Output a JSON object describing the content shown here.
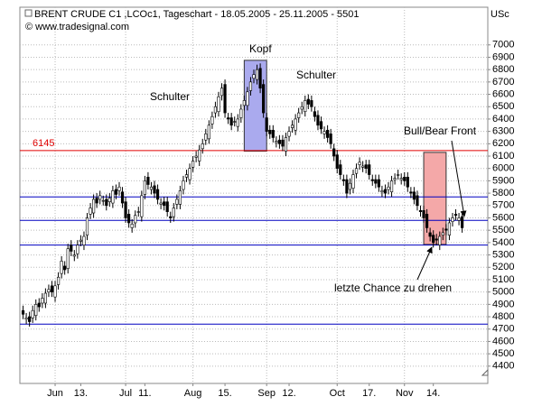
{
  "chart_data": {
    "type": "candlestick",
    "title": "BRENT CRUDE  C1 ,LCOc1, Tageschart - 18.05.2005 - 25.11.2005 - 5501",
    "subtitle": "© www.tradesignal.com",
    "y_unit": "USc",
    "xlim": [
      -1,
      145
    ],
    "ylim": [
      4260,
      7305
    ],
    "yticks": [
      4400,
      4500,
      4600,
      4700,
      4800,
      4900,
      5000,
      5100,
      5200,
      5300,
      5400,
      5500,
      5600,
      5700,
      5800,
      5900,
      6000,
      6100,
      6200,
      6300,
      6400,
      6500,
      6600,
      6700,
      6800,
      6900,
      7000
    ],
    "xticks": [
      {
        "value": 10,
        "label": "Jun"
      },
      {
        "value": 18,
        "label": "13."
      },
      {
        "value": 32,
        "label": "Jul"
      },
      {
        "value": 38,
        "label": "11."
      },
      {
        "value": 53,
        "label": "Aug"
      },
      {
        "value": 63,
        "label": "15."
      },
      {
        "value": 76,
        "label": "Sep"
      },
      {
        "value": 83,
        "label": "12."
      },
      {
        "value": 98,
        "label": "Oct"
      },
      {
        "value": 108,
        "label": "17."
      },
      {
        "value": 119,
        "label": "Nov"
      },
      {
        "value": 128,
        "label": "14."
      }
    ],
    "grid": true,
    "open": [
      4850,
      4780,
      4800,
      4790,
      4810,
      4910,
      4910,
      4910,
      5000,
      5050,
      4960,
      5060,
      5150,
      5210,
      5190,
      5380,
      5290,
      5310,
      5410,
      5380,
      5460,
      5630,
      5640,
      5760,
      5750,
      5740,
      5750,
      5730,
      5720,
      5830,
      5820,
      5810,
      5730,
      5630,
      5520,
      5560,
      5650,
      5610,
      5790,
      5930,
      5830,
      5860,
      5830,
      5710,
      5730,
      5730,
      5610,
      5610,
      5710,
      5710,
      5830,
      5930,
      5910,
      6010,
      6090,
      6060,
      6160,
      6230,
      6240,
      6360,
      6450,
      6460,
      6590,
      6680,
      6410,
      6410,
      6380,
      6340,
      6410,
      6510,
      6510,
      6630,
      6730,
      6720,
      6810,
      6680,
      6410,
      6310,
      6310,
      6210,
      6230,
      6230,
      6140,
      6260,
      6330,
      6310,
      6410,
      6480,
      6460,
      6560,
      6550,
      6460,
      6430,
      6380,
      6280,
      6310,
      6280,
      6160,
      6110,
      6030,
      5910,
      5910,
      5830,
      5840,
      5960,
      6030,
      6010,
      6030,
      6030,
      5910,
      5910,
      5910,
      5810,
      5830,
      5830,
      5810,
      5910,
      5950,
      5910,
      5930,
      5930,
      5810,
      5810,
      5780,
      5660,
      5660,
      5630,
      5480,
      5460,
      5430,
      5380,
      5460,
      5510,
      5460,
      5570,
      5630,
      5580,
      5610
    ],
    "high": [
      4890,
      4830,
      4840,
      4890,
      4940,
      4950,
      4990,
      5030,
      5060,
      5090,
      5090,
      5160,
      5290,
      5250,
      5390,
      5420,
      5340,
      5420,
      5460,
      5490,
      5640,
      5720,
      5790,
      5800,
      5820,
      5780,
      5790,
      5800,
      5860,
      5870,
      5890,
      5850,
      5770,
      5670,
      5590,
      5660,
      5690,
      5820,
      5940,
      5970,
      5890,
      5900,
      5870,
      5760,
      5770,
      5770,
      5650,
      5720,
      5790,
      5860,
      5940,
      5990,
      6040,
      6100,
      6140,
      6190,
      6240,
      6320,
      6390,
      6460,
      6540,
      6620,
      6690,
      6720,
      6450,
      6450,
      6420,
      6440,
      6520,
      6590,
      6660,
      6740,
      6800,
      6840,
      6850,
      6720,
      6450,
      6350,
      6350,
      6260,
      6270,
      6270,
      6290,
      6340,
      6390,
      6440,
      6490,
      6540,
      6590,
      6600,
      6590,
      6500,
      6470,
      6420,
      6340,
      6350,
      6320,
      6200,
      6150,
      6070,
      5950,
      5950,
      5920,
      5990,
      6040,
      6090,
      6060,
      6070,
      6070,
      5950,
      5950,
      5950,
      5860,
      5870,
      5890,
      5940,
      5960,
      5990,
      5960,
      5970,
      5970,
      5850,
      5850,
      5820,
      5700,
      5700,
      5670,
      5520,
      5500,
      5470,
      5490,
      5520,
      5550,
      5600,
      5640,
      5670,
      5640,
      5650
    ],
    "low": [
      4780,
      4740,
      4720,
      4750,
      4770,
      4840,
      4870,
      4870,
      4960,
      4960,
      4920,
      5020,
      5110,
      5140,
      5150,
      5290,
      5250,
      5270,
      5370,
      5340,
      5420,
      5590,
      5600,
      5680,
      5710,
      5700,
      5660,
      5690,
      5680,
      5750,
      5780,
      5680,
      5560,
      5520,
      5480,
      5520,
      5610,
      5570,
      5750,
      5830,
      5790,
      5760,
      5710,
      5670,
      5660,
      5610,
      5560,
      5570,
      5670,
      5670,
      5790,
      5890,
      5870,
      5970,
      6050,
      6020,
      6120,
      6190,
      6200,
      6320,
      6410,
      6420,
      6550,
      6410,
      6360,
      6310,
      6340,
      6300,
      6370,
      6470,
      6470,
      6590,
      6690,
      6680,
      6610,
      6410,
      6260,
      6240,
      6210,
      6170,
      6160,
      6140,
      6100,
      6220,
      6290,
      6270,
      6370,
      6440,
      6420,
      6480,
      6460,
      6380,
      6310,
      6280,
      6240,
      6210,
      6160,
      6060,
      5960,
      5910,
      5860,
      5760,
      5790,
      5800,
      5920,
      5990,
      5970,
      5960,
      5910,
      5860,
      5840,
      5810,
      5770,
      5760,
      5790,
      5770,
      5870,
      5910,
      5870,
      5860,
      5810,
      5760,
      5710,
      5660,
      5610,
      5560,
      5480,
      5410,
      5360,
      5380,
      5340,
      5420,
      5460,
      5420,
      5530,
      5580,
      5540,
      5480
    ],
    "close": [
      4820,
      4790,
      4760,
      4850,
      4900,
      4880,
      4950,
      4990,
      5020,
      5000,
      5050,
      5120,
      5250,
      5180,
      5350,
      5330,
      5300,
      5380,
      5420,
      5450,
      5600,
      5680,
      5750,
      5720,
      5780,
      5740,
      5700,
      5760,
      5820,
      5790,
      5850,
      5720,
      5600,
      5560,
      5550,
      5620,
      5650,
      5780,
      5900,
      5870,
      5850,
      5800,
      5750,
      5720,
      5700,
      5650,
      5600,
      5680,
      5750,
      5820,
      5900,
      5950,
      6000,
      6060,
      6100,
      6150,
      6200,
      6280,
      6350,
      6420,
      6500,
      6580,
      6650,
      6450,
      6400,
      6350,
      6380,
      6400,
      6480,
      6550,
      6620,
      6700,
      6760,
      6800,
      6650,
      6450,
      6300,
      6280,
      6250,
      6220,
      6200,
      6180,
      6250,
      6300,
      6350,
      6400,
      6450,
      6500,
      6550,
      6520,
      6500,
      6420,
      6350,
      6320,
      6300,
      6250,
      6200,
      6100,
      6000,
      5950,
      5900,
      5800,
      5880,
      5950,
      6000,
      6050,
      6020,
      6000,
      5950,
      5900,
      5880,
      5850,
      5820,
      5800,
      5850,
      5900,
      5920,
      5950,
      5920,
      5900,
      5850,
      5800,
      5750,
      5700,
      5650,
      5600,
      5520,
      5450,
      5400,
      5420,
      5450,
      5480,
      5500,
      5560,
      5600,
      5620,
      5600,
      5520
    ],
    "hlines": [
      {
        "value": 6145,
        "color": "#e00000",
        "label": "6145"
      },
      {
        "value": 5770,
        "color": "#0000c0"
      },
      {
        "value": 5580,
        "color": "#0000c0"
      },
      {
        "value": 5380,
        "color": "#0000c0"
      },
      {
        "value": 4740,
        "color": "#0000c0"
      }
    ],
    "zones": [
      {
        "x": [
          69,
          76
        ],
        "y": [
          6140,
          6875
        ],
        "color": "#aaaaee"
      },
      {
        "x": [
          125,
          132
        ],
        "y": [
          5385,
          6130
        ],
        "color": "#f4a8a8"
      }
    ],
    "annotations": {
      "head": "Kopf",
      "left_shoulder": "Schulter",
      "right_shoulder": "Schulter",
      "front": "Bull/Bear Front",
      "chance": "letzte Chance zu drehen"
    }
  }
}
